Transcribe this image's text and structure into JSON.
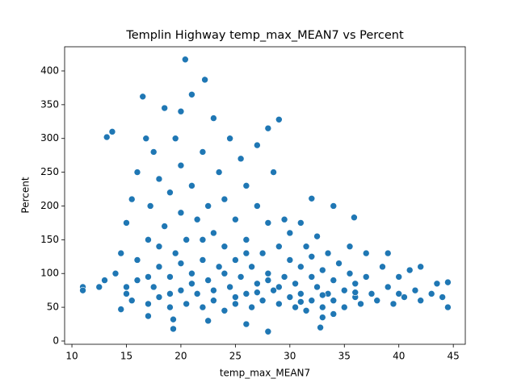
{
  "chart_data": {
    "type": "scatter",
    "title": "Templin Highway temp_max_MEAN7 vs Percent",
    "xlabel": "temp_max_MEAN7",
    "ylabel": "Percent",
    "color": "#1f77b4",
    "xlim": [
      9.33,
      46.1
    ],
    "ylim": [
      -4.8,
      435.8
    ],
    "xticks": [
      10,
      15,
      20,
      25,
      30,
      35,
      40,
      45
    ],
    "yticks": [
      0,
      50,
      100,
      150,
      200,
      250,
      300,
      350,
      400
    ],
    "x": [
      11,
      11,
      12.5,
      13,
      13.2,
      13.7,
      19.3,
      19.3,
      20.4,
      22.2,
      22.5,
      26,
      28,
      32.8,
      33,
      32,
      34,
      35.9,
      44.5,
      44.5,
      44,
      43.5,
      17,
      14.5,
      14,
      14.5,
      15,
      15,
      15.5,
      15.5,
      16,
      16,
      16.5,
      16,
      16.8,
      17,
      17,
      17.2,
      17.5,
      17.5,
      18,
      18,
      18,
      18.5,
      18.5,
      19,
      19,
      19,
      19.5,
      19.5,
      20,
      20,
      20,
      20,
      20.5,
      20.5,
      21,
      21,
      21,
      21.5,
      21.5,
      22,
      22,
      22,
      22.5,
      22.5,
      23,
      23,
      23,
      23.5,
      23.5,
      24,
      24,
      24,
      24.5,
      24.5,
      25,
      25,
      25,
      25.5,
      25.5,
      26,
      26,
      26,
      26.5,
      26.5,
      27,
      27,
      27,
      27.5,
      27.5,
      28,
      28,
      28,
      28.5,
      28.5,
      29,
      29,
      29,
      29.5,
      29.5,
      30,
      30,
      30,
      30.5,
      30.5,
      31,
      31,
      31,
      31.5,
      31.5,
      32,
      32,
      32,
      32.5,
      32.5,
      33,
      33,
      33.5,
      33.5,
      34,
      34,
      34,
      34.5,
      35,
      35,
      35.5,
      35.5,
      36,
      36,
      36.5,
      37,
      37,
      37.5,
      38,
      38.5,
      39,
      39,
      39.5,
      40,
      40.5,
      41,
      41.5,
      42,
      15,
      17,
      19,
      21,
      23,
      25,
      27,
      29,
      31,
      33,
      36,
      40,
      42,
      43,
      18,
      22,
      26,
      20,
      24,
      28
    ],
    "values": [
      80,
      75,
      80,
      90,
      302,
      310,
      32,
      18,
      417,
      387,
      30,
      25,
      14,
      20,
      35,
      211,
      200,
      183,
      87,
      50,
      65,
      85,
      37,
      47,
      100,
      130,
      70,
      175,
      210,
      60,
      90,
      250,
      362,
      120,
      300,
      150,
      55,
      200,
      80,
      280,
      110,
      240,
      65,
      345,
      170,
      95,
      220,
      50,
      130,
      300,
      75,
      190,
      260,
      340,
      55,
      150,
      100,
      230,
      365,
      70,
      180,
      120,
      280,
      50,
      90,
      200,
      60,
      160,
      330,
      110,
      250,
      45,
      140,
      210,
      80,
      300,
      120,
      180,
      55,
      95,
      270,
      70,
      150,
      230,
      110,
      50,
      85,
      200,
      290,
      130,
      60,
      100,
      175,
      315,
      75,
      250,
      140,
      55,
      328,
      95,
      180,
      65,
      120,
      160,
      85,
      50,
      110,
      175,
      70,
      140,
      45,
      95,
      60,
      125,
      80,
      155,
      50,
      105,
      70,
      130,
      90,
      40,
      60,
      115,
      75,
      50,
      100,
      140,
      65,
      85,
      55,
      95,
      130,
      70,
      60,
      110,
      80,
      130,
      55,
      95,
      65,
      105,
      75,
      60,
      80,
      95,
      70,
      85,
      75,
      65,
      72,
      80,
      58,
      68,
      72,
      70,
      110,
      70,
      140,
      150,
      130,
      115,
      100,
      90
    ]
  }
}
